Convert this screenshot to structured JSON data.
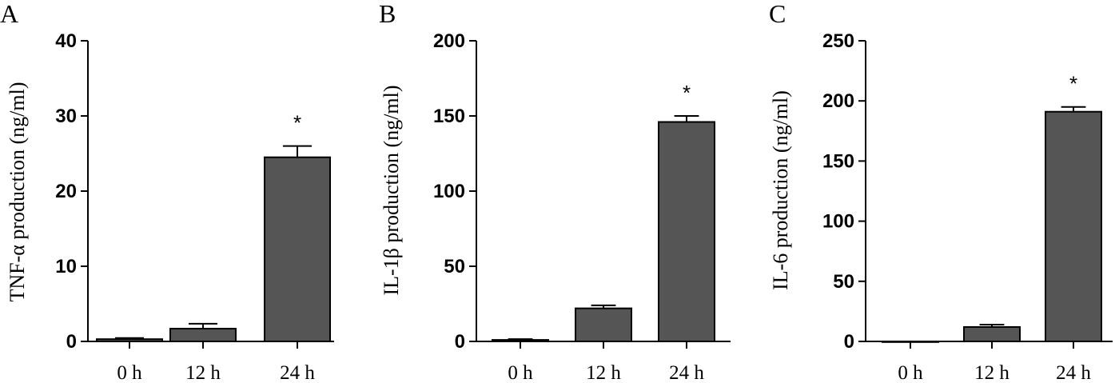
{
  "chart_data": [
    {
      "type": "bar",
      "panel": "A",
      "categories": [
        "0 h",
        "12 h",
        "24 h"
      ],
      "values": [
        0.3,
        1.7,
        24.5
      ],
      "errors": [
        0.15,
        0.65,
        1.5
      ],
      "annotations": [
        "",
        "",
        "*"
      ],
      "ylabel": "TNF-α production (ng/ml)",
      "ylim": [
        0,
        40
      ],
      "yticks": [
        0,
        10,
        20,
        30,
        40
      ],
      "bar_color": "#555555",
      "grid": false
    },
    {
      "type": "bar",
      "panel": "B",
      "categories": [
        "0 h",
        "12 h",
        "24 h"
      ],
      "values": [
        1,
        22,
        146
      ],
      "errors": [
        0.5,
        2,
        4
      ],
      "annotations": [
        "",
        "",
        "*"
      ],
      "ylabel": "IL-1β production (ng/ml)",
      "ylim": [
        0,
        200
      ],
      "yticks": [
        0,
        50,
        100,
        150,
        200
      ],
      "bar_color": "#555555",
      "grid": false
    },
    {
      "type": "bar",
      "panel": "C",
      "categories": [
        "0 h",
        "12 h",
        "24 h"
      ],
      "values": [
        0,
        12,
        191
      ],
      "errors": [
        0,
        2,
        4
      ],
      "annotations": [
        "",
        "",
        "*"
      ],
      "ylabel": "IL-6 production (ng/ml)",
      "ylim": [
        0,
        250
      ],
      "yticks": [
        0,
        50,
        100,
        150,
        200,
        250
      ],
      "bar_color": "#555555",
      "grid": false
    }
  ]
}
